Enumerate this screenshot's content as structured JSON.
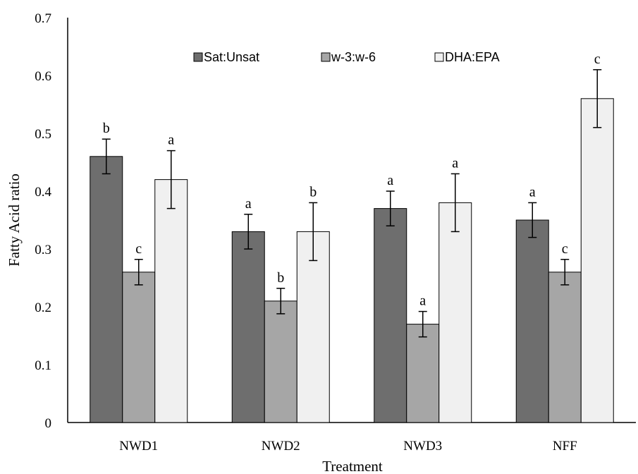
{
  "chart_data": {
    "type": "bar",
    "title": "",
    "xlabel": "Treatment",
    "ylabel": "Fatty Acid ratio",
    "ylim": [
      0,
      0.7
    ],
    "yticks": [
      "0",
      "0.1",
      "0.2",
      "0.3",
      "0.4",
      "0.5",
      "0.6",
      "0.7"
    ],
    "grid": false,
    "legend_position": "top",
    "categories": [
      "NWD1",
      "NWD2",
      "NWD3",
      "NFF"
    ],
    "series": [
      {
        "name": "Sat:Unsat",
        "color": "#6e6e6e",
        "values": [
          0.46,
          0.33,
          0.37,
          0.35
        ],
        "errors": [
          0.03,
          0.03,
          0.03,
          0.03
        ],
        "labels": [
          "b",
          "a",
          "a",
          "a"
        ]
      },
      {
        "name": "w-3:w-6",
        "color": "#a6a6a6",
        "values": [
          0.26,
          0.21,
          0.17,
          0.26
        ],
        "errors": [
          0.022,
          0.022,
          0.022,
          0.022
        ],
        "labels": [
          "c",
          "b",
          "a",
          "c"
        ]
      },
      {
        "name": "DHA:EPA",
        "color": "#f0f0f0",
        "values": [
          0.42,
          0.33,
          0.38,
          0.56
        ],
        "errors": [
          0.05,
          0.05,
          0.05,
          0.05
        ],
        "labels": [
          "a",
          "b",
          "a",
          "c"
        ]
      }
    ]
  }
}
